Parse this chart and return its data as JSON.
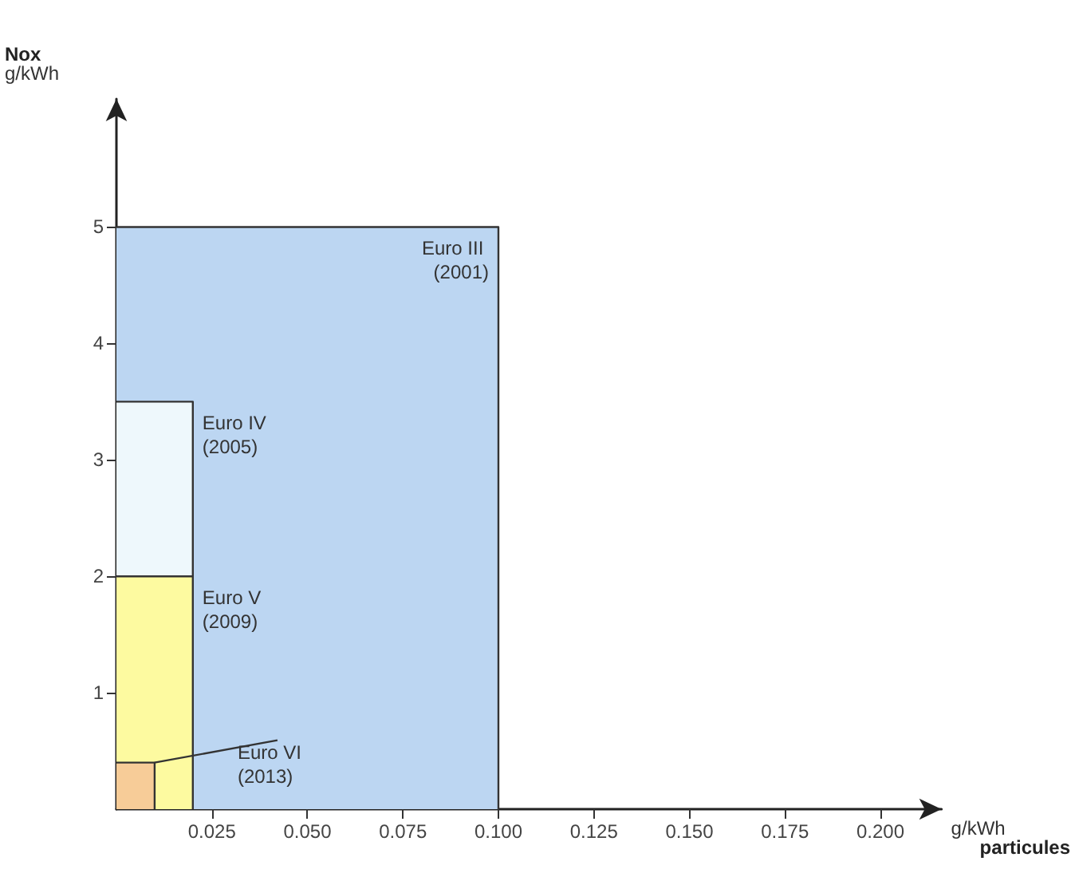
{
  "chart_data": {
    "type": "area",
    "xlabel": "g/kWh particules",
    "ylabel": "Nox g/kWh",
    "xlim": [
      0,
      0.216
    ],
    "ylim": [
      0,
      6.1
    ],
    "xticks": [
      {
        "value": 0.025,
        "label": "0.025"
      },
      {
        "value": 0.05,
        "label": "0.050"
      },
      {
        "value": 0.075,
        "label": "0.075"
      },
      {
        "value": 0.1,
        "label": "0.100"
      },
      {
        "value": 0.125,
        "label": "0.125"
      },
      {
        "value": 0.15,
        "label": "0.150"
      },
      {
        "value": 0.175,
        "label": "0.175"
      },
      {
        "value": 0.2,
        "label": "0.200"
      }
    ],
    "yticks": [
      1,
      2,
      3,
      4,
      5
    ],
    "grid": false,
    "legend": false,
    "marker": "none",
    "series": [
      {
        "name": "Euro III (2001)",
        "color": "#bcd6f2",
        "x": [
          0,
          0.1,
          0.1
        ],
        "values": [
          5,
          5,
          0
        ]
      },
      {
        "name": "Euro IV (2005)",
        "color": "#eef8fc",
        "x": [
          0,
          0.02,
          0.02
        ],
        "values": [
          3.5,
          3.5,
          0
        ]
      },
      {
        "name": "Euro V (2009)",
        "color": "#fdfaa0",
        "x": [
          0,
          0.02,
          0.02
        ],
        "values": [
          2,
          2,
          0
        ]
      },
      {
        "name": "Euro VI (2013)",
        "color": "#f7cc98",
        "x": [
          0,
          0.01,
          0.01
        ],
        "values": [
          0.4,
          0.4,
          0
        ]
      }
    ]
  }
}
